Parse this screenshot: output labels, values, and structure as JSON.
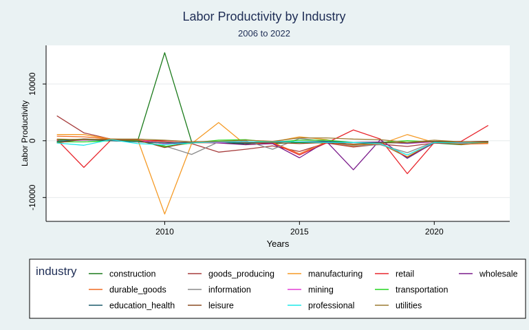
{
  "chart_data": {
    "type": "line",
    "title": "Labor Productivity by Industry",
    "subtitle": "2006 to 2022",
    "xlabel": "Years",
    "ylabel": "Labor Productivity",
    "xlim": [
      2005.6,
      2022.8
    ],
    "ylim": [
      -14200,
      16800
    ],
    "x_ticks": [
      2010,
      2015,
      2020
    ],
    "y_ticks": [
      -10000,
      0,
      10000
    ],
    "x_tick_labels": [
      "2010",
      "2015",
      "2020"
    ],
    "y_tick_labels": [
      "-10000",
      "0",
      "10000"
    ],
    "grid": true,
    "legend": {
      "title": "industry",
      "placement": "bottom"
    },
    "x": [
      2006,
      2007,
      2008,
      2009,
      2010,
      2011,
      2012,
      2013,
      2014,
      2015,
      2016,
      2017,
      2018,
      2019,
      2020,
      2021,
      2022
    ],
    "series": [
      {
        "name": "construction",
        "color": "#1a7a1a",
        "values": [
          100,
          300,
          200,
          0,
          15500,
          -200,
          -300,
          -600,
          -500,
          -300,
          -400,
          -600,
          -500,
          -2900,
          -400,
          -700,
          -300
        ]
      },
      {
        "name": "goods_producing",
        "color": "#a63c3c",
        "values": [
          4400,
          1400,
          300,
          100,
          -200,
          -500,
          -2000,
          -1500,
          -900,
          -1900,
          -400,
          -1100,
          -600,
          -1000,
          -400,
          -500,
          -200
        ]
      },
      {
        "name": "manufacturing",
        "color": "#f59a25",
        "values": [
          1100,
          1100,
          300,
          200,
          -12900,
          -500,
          3200,
          -700,
          -200,
          700,
          200,
          -800,
          -600,
          1100,
          -300,
          -300,
          -400
        ]
      },
      {
        "name": "retail",
        "color": "#e8262d",
        "values": [
          200,
          -4700,
          100,
          0,
          0,
          -200,
          -200,
          -400,
          -400,
          -2500,
          -400,
          1900,
          300,
          -5800,
          -300,
          -100,
          2700
        ]
      },
      {
        "name": "wholesale",
        "color": "#7a1a8a",
        "values": [
          -300,
          300,
          100,
          0,
          -500,
          -300,
          -400,
          -700,
          -500,
          -3000,
          -100,
          -5100,
          200,
          -3100,
          -300,
          -400,
          -200
        ]
      },
      {
        "name": "durable_goods",
        "color": "#f06a20",
        "values": [
          800,
          700,
          300,
          200,
          -1100,
          -400,
          -300,
          -200,
          -300,
          -2300,
          -200,
          -1000,
          -500,
          -2800,
          -200,
          -600,
          -500
        ]
      },
      {
        "name": "information",
        "color": "#8a8a8a",
        "values": [
          -200,
          200,
          200,
          0,
          -900,
          -2400,
          -200,
          0,
          -1500,
          400,
          -100,
          -900,
          -700,
          -2100,
          -200,
          -400,
          -300
        ]
      },
      {
        "name": "mining",
        "color": "#e23fd6",
        "values": [
          -100,
          100,
          100,
          0,
          -500,
          -300,
          -300,
          -200,
          -200,
          -200,
          -200,
          -300,
          -200,
          -500,
          -200,
          -300,
          -200
        ]
      },
      {
        "name": "transportation",
        "color": "#22d61e",
        "values": [
          -200,
          -200,
          0,
          0,
          -1000,
          -400,
          100,
          200,
          -300,
          100,
          100,
          -300,
          -300,
          0,
          -200,
          -200,
          -200
        ]
      },
      {
        "name": "education_health",
        "color": "#1a5a6a",
        "values": [
          -100,
          200,
          0,
          -200,
          -400,
          -300,
          -100,
          -500,
          -100,
          -200,
          -100,
          -300,
          -300,
          -400,
          -100,
          -200,
          -100
        ]
      },
      {
        "name": "leisure",
        "color": "#8a4a20",
        "values": [
          -400,
          300,
          100,
          100,
          -1200,
          -200,
          -100,
          -300,
          -300,
          -500,
          -300,
          -600,
          -400,
          -300,
          -100,
          -200,
          -100
        ]
      },
      {
        "name": "professional",
        "color": "#1ae8e8",
        "values": [
          -400,
          -800,
          200,
          -500,
          -700,
          -400,
          -200,
          -200,
          -200,
          -200,
          -300,
          -300,
          -500,
          -2500,
          -300,
          -400,
          -300
        ]
      },
      {
        "name": "utilities",
        "color": "#9a7a30",
        "values": [
          300,
          200,
          300,
          300,
          100,
          -200,
          -100,
          100,
          -100,
          500,
          500,
          300,
          200,
          -300,
          100,
          -200,
          -300
        ]
      }
    ],
    "legend_rows": [
      [
        "construction",
        "goods_producing",
        "manufacturing",
        "retail",
        "wholesale"
      ],
      [
        "durable_goods",
        "information",
        "mining",
        "transportation"
      ],
      [
        "education_health",
        "leisure",
        "professional",
        "utilities"
      ]
    ]
  }
}
